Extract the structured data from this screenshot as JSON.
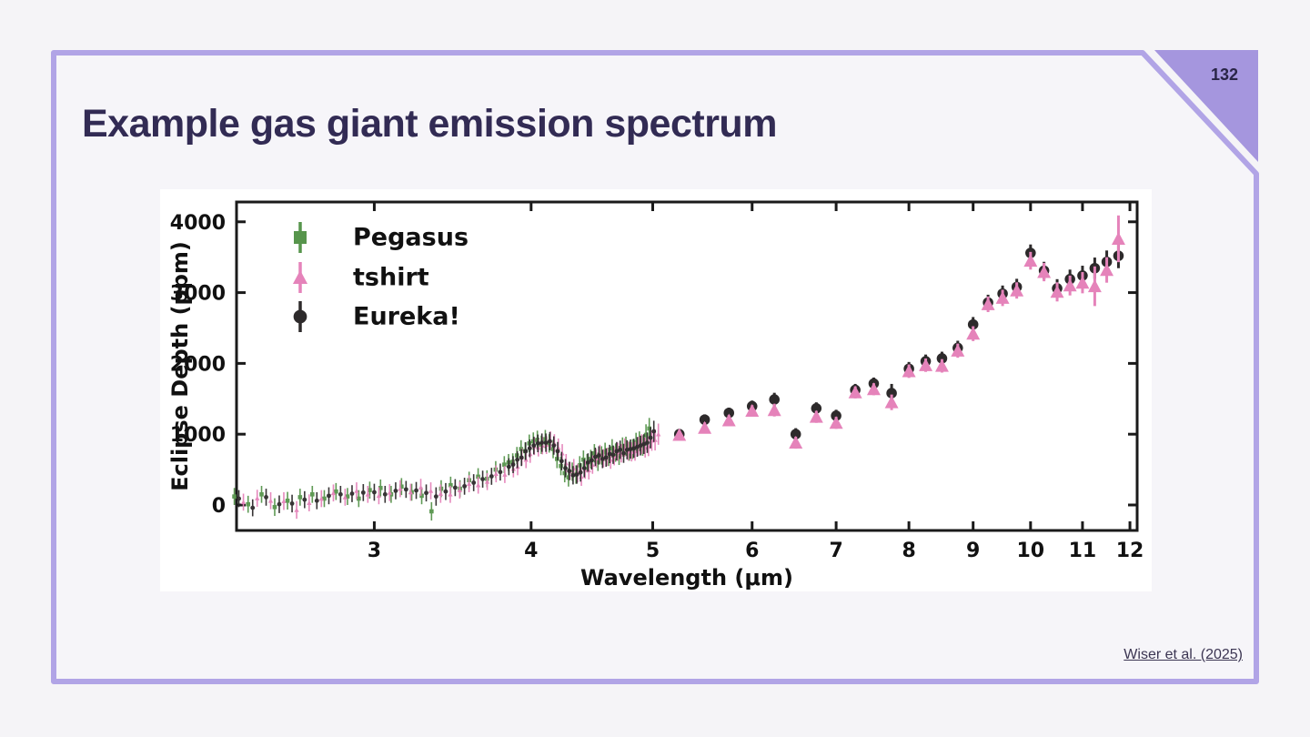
{
  "page": {
    "number": "132"
  },
  "slide": {
    "title": "Example gas giant emission spectrum",
    "citation": "Wiser et al. (2025)"
  },
  "colors": {
    "background": "#f5f4f7",
    "slide_fill": "#f6f5f9",
    "accent_border": "#b1a4e6",
    "corner_triangle": "#a596de",
    "title_text": "#322b54",
    "page_number_text": "#2a2547",
    "citation_text": "#3b3552",
    "axis_ink": "#1a1a1a",
    "pegasus_green": "#57954c",
    "tshirt_pink": "#e583ba",
    "eureka_black": "#2d2a2b"
  },
  "chart_data": {
    "type": "scatter",
    "title": "",
    "xlabel": "Wavelength (μm)",
    "ylabel": "Eclipse Depth (ppm)",
    "x_scale": "log",
    "xlim": [
      2.33,
      12.16
    ],
    "ylim": [
      -360,
      4280
    ],
    "x_ticks": [
      3,
      4,
      5,
      6,
      7,
      8,
      9,
      10,
      11,
      12
    ],
    "y_ticks": [
      0,
      1000,
      2000,
      3000,
      4000
    ],
    "grid": false,
    "legend": {
      "position": "upper-left",
      "entries": [
        {
          "label": "Pegasus",
          "marker": "square",
          "color": "#57954c"
        },
        {
          "label": "tshirt",
          "marker": "triangle",
          "color": "#e583ba"
        },
        {
          "label": "Eureka!",
          "marker": "circle",
          "color": "#2d2a2b"
        }
      ]
    },
    "high_res_band": {
      "description": "densely sampled 2.3-5 um spectrum, all three pipelines overlap; columns: wavelength_um, pegasus_ppm, tshirt_ppm, eureka_ppm, err_ppm",
      "rows": [
        [
          2.34,
          120,
          40,
          90,
          120
        ],
        [
          2.4,
          10,
          95,
          -40,
          120
        ],
        [
          2.46,
          150,
          60,
          110,
          120
        ],
        [
          2.52,
          -30,
          55,
          10,
          125
        ],
        [
          2.58,
          60,
          -70,
          20,
          125
        ],
        [
          2.64,
          110,
          30,
          75,
          120
        ],
        [
          2.7,
          150,
          90,
          60,
          120
        ],
        [
          2.76,
          90,
          170,
          130,
          120
        ],
        [
          2.82,
          190,
          110,
          150,
          120
        ],
        [
          2.88,
          120,
          200,
          160,
          120
        ],
        [
          2.94,
          90,
          150,
          175,
          120
        ],
        [
          3.0,
          210,
          130,
          180,
          120
        ],
        [
          3.06,
          240,
          175,
          150,
          120
        ],
        [
          3.12,
          150,
          230,
          200,
          120
        ],
        [
          3.18,
          260,
          180,
          220,
          120
        ],
        [
          3.24,
          180,
          250,
          205,
          120
        ],
        [
          3.3,
          130,
          200,
          170,
          120
        ],
        [
          3.36,
          -90,
          160,
          120,
          130
        ],
        [
          3.42,
          230,
          150,
          190,
          120
        ],
        [
          3.48,
          280,
          210,
          245,
          120
        ],
        [
          3.54,
          230,
          300,
          265,
          120
        ],
        [
          3.6,
          350,
          280,
          315,
          120
        ],
        [
          3.66,
          400,
          330,
          365,
          120
        ],
        [
          3.72,
          370,
          440,
          405,
          120
        ],
        [
          3.78,
          500,
          430,
          465,
          120
        ],
        [
          3.84,
          570,
          510,
          540,
          120
        ],
        [
          3.87,
          600,
          540,
          570,
          120
        ],
        [
          3.9,
          610,
          680,
          640,
          120
        ],
        [
          3.93,
          700,
          640,
          670,
          120
        ],
        [
          3.96,
          790,
          720,
          760,
          125
        ],
        [
          3.99,
          760,
          830,
          800,
          125
        ],
        [
          4.02,
          870,
          810,
          840,
          125
        ],
        [
          4.05,
          900,
          840,
          870,
          125
        ],
        [
          4.08,
          920,
          850,
          880,
          130
        ],
        [
          4.11,
          850,
          910,
          880,
          130
        ],
        [
          4.14,
          930,
          870,
          900,
          130
        ],
        [
          4.17,
          870,
          810,
          840,
          130
        ],
        [
          4.2,
          790,
          730,
          760,
          130
        ],
        [
          4.23,
          650,
          590,
          620,
          130
        ],
        [
          4.26,
          550,
          480,
          520,
          130
        ],
        [
          4.29,
          450,
          520,
          480,
          130
        ],
        [
          4.32,
          390,
          450,
          420,
          130
        ],
        [
          4.35,
          470,
          400,
          430,
          130
        ],
        [
          4.38,
          430,
          500,
          460,
          130
        ],
        [
          4.41,
          560,
          490,
          520,
          130
        ],
        [
          4.44,
          640,
          570,
          600,
          130
        ],
        [
          4.47,
          590,
          660,
          630,
          130
        ],
        [
          4.5,
          650,
          720,
          680,
          130
        ],
        [
          4.53,
          730,
          660,
          700,
          130
        ],
        [
          4.56,
          610,
          680,
          650,
          130
        ],
        [
          4.59,
          700,
          640,
          670,
          130
        ],
        [
          4.62,
          750,
          690,
          720,
          130
        ],
        [
          4.65,
          680,
          750,
          710,
          130
        ],
        [
          4.68,
          800,
          730,
          760,
          130
        ],
        [
          4.71,
          740,
          810,
          780,
          130
        ],
        [
          4.74,
          700,
          760,
          730,
          135
        ],
        [
          4.77,
          820,
          750,
          780,
          135
        ],
        [
          4.8,
          830,
          760,
          790,
          135
        ],
        [
          4.83,
          760,
          830,
          800,
          135
        ],
        [
          4.86,
          790,
          860,
          820,
          140
        ],
        [
          4.89,
          880,
          810,
          840,
          140
        ],
        [
          4.92,
          900,
          830,
          860,
          140
        ],
        [
          4.95,
          840,
          910,
          880,
          145
        ],
        [
          4.98,
          990,
          920,
          950,
          150
        ],
        [
          5.01,
          1080,
          1000,
          1040,
          150
        ]
      ]
    },
    "series": [
      {
        "name": "Eureka!",
        "marker": "circle",
        "color": "#2d2a2b",
        "points_format": "[wavelength_um, eclipse_depth_ppm, err_ppm]",
        "points": [
          [
            5.25,
            1000,
            70
          ],
          [
            5.5,
            1205,
            75
          ],
          [
            5.75,
            1300,
            75
          ],
          [
            6.0,
            1395,
            80
          ],
          [
            6.25,
            1490,
            95
          ],
          [
            6.5,
            1000,
            85
          ],
          [
            6.75,
            1365,
            85
          ],
          [
            7.0,
            1260,
            85
          ],
          [
            7.25,
            1625,
            85
          ],
          [
            7.5,
            1715,
            85
          ],
          [
            7.75,
            1580,
            130
          ],
          [
            8.0,
            1925,
            95
          ],
          [
            8.25,
            2030,
            95
          ],
          [
            8.5,
            2070,
            95
          ],
          [
            8.75,
            2220,
            100
          ],
          [
            9.0,
            2550,
            105
          ],
          [
            9.25,
            2860,
            110
          ],
          [
            9.5,
            2985,
            115
          ],
          [
            9.75,
            3080,
            115
          ],
          [
            10.0,
            3560,
            120
          ],
          [
            10.25,
            3310,
            125
          ],
          [
            10.5,
            3060,
            130
          ],
          [
            10.75,
            3190,
            135
          ],
          [
            11.0,
            3240,
            140
          ],
          [
            11.25,
            3345,
            150
          ],
          [
            11.5,
            3435,
            160
          ],
          [
            11.75,
            3520,
            175
          ]
        ]
      },
      {
        "name": "tshirt",
        "marker": "triangle",
        "color": "#e583ba",
        "points_format": "[wavelength_um, eclipse_depth_ppm, err_ppm]",
        "points": [
          [
            5.25,
            990,
            70
          ],
          [
            5.5,
            1090,
            75
          ],
          [
            5.75,
            1195,
            75
          ],
          [
            6.0,
            1330,
            80
          ],
          [
            6.25,
            1340,
            90
          ],
          [
            6.5,
            880,
            85
          ],
          [
            6.75,
            1245,
            85
          ],
          [
            7.0,
            1160,
            85
          ],
          [
            7.25,
            1590,
            85
          ],
          [
            7.5,
            1635,
            85
          ],
          [
            7.75,
            1450,
            110
          ],
          [
            8.0,
            1890,
            95
          ],
          [
            8.25,
            1975,
            95
          ],
          [
            8.5,
            1965,
            95
          ],
          [
            8.75,
            2180,
            100
          ],
          [
            9.0,
            2420,
            105
          ],
          [
            9.25,
            2835,
            110
          ],
          [
            9.5,
            2925,
            115
          ],
          [
            9.75,
            3030,
            115
          ],
          [
            10.0,
            3450,
            125
          ],
          [
            10.25,
            3290,
            130
          ],
          [
            10.5,
            3010,
            135
          ],
          [
            10.75,
            3100,
            140
          ],
          [
            11.0,
            3140,
            150
          ],
          [
            11.25,
            3090,
            280
          ],
          [
            11.5,
            3320,
            180
          ],
          [
            11.75,
            3760,
            330
          ]
        ]
      }
    ]
  }
}
